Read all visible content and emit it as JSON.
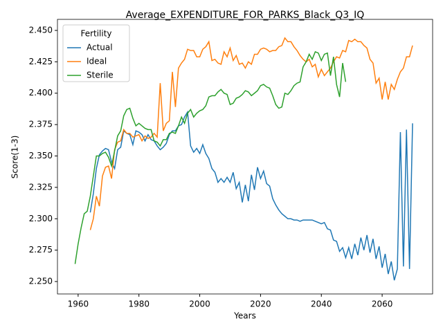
{
  "chart_data": {
    "type": "line",
    "title": "Average_EXPENDITURE_FOR_PARKS_Black_Q3_IQ",
    "x_label": "Years",
    "y_label": "Score(1-3)",
    "legend_title": "Fertility",
    "legend_position": "upper left",
    "x": [
      1959,
      1960,
      1961,
      1962,
      1963,
      1964,
      1965,
      1966,
      1967,
      1968,
      1969,
      1970,
      1971,
      1972,
      1973,
      1974,
      1975,
      1976,
      1977,
      1978,
      1979,
      1980,
      1981,
      1982,
      1983,
      1984,
      1985,
      1986,
      1987,
      1988,
      1989,
      1990,
      1991,
      1992,
      1993,
      1994,
      1995,
      1996,
      1997,
      1998,
      1999,
      2000,
      2001,
      2002,
      2003,
      2004,
      2005,
      2006,
      2007,
      2008,
      2009,
      2010,
      2011,
      2012,
      2013,
      2014,
      2015,
      2016,
      2017,
      2018,
      2019,
      2020,
      2021,
      2022,
      2023,
      2024,
      2025,
      2026,
      2027,
      2028,
      2029,
      2030,
      2031,
      2032,
      2033,
      2034,
      2035,
      2036,
      2037,
      2038,
      2039,
      2040,
      2041,
      2042,
      2043,
      2044,
      2045,
      2046,
      2047,
      2048,
      2049,
      2050,
      2051,
      2052,
      2053,
      2054,
      2055,
      2056,
      2057,
      2058,
      2059,
      2060,
      2061,
      2062,
      2063,
      2064,
      2065,
      2066,
      2067,
      2068,
      2069,
      2070
    ],
    "series": [
      {
        "name": "Actual",
        "color": "#1f77b4",
        "values": [
          null,
          null,
          null,
          null,
          null,
          2.305,
          2.32,
          2.34,
          2.351,
          2.354,
          2.356,
          2.355,
          2.345,
          2.34,
          2.355,
          2.357,
          2.37,
          2.368,
          2.367,
          2.359,
          2.37,
          2.369,
          2.367,
          2.362,
          2.367,
          2.363,
          2.362,
          2.358,
          2.355,
          2.357,
          2.36,
          2.367,
          2.37,
          2.37,
          2.374,
          2.375,
          2.381,
          2.385,
          2.358,
          2.353,
          2.356,
          2.352,
          2.359,
          2.352,
          2.348,
          2.34,
          2.337,
          2.329,
          2.332,
          2.329,
          2.333,
          2.329,
          2.337,
          2.324,
          2.329,
          2.313,
          2.327,
          2.314,
          2.335,
          2.323,
          2.341,
          2.332,
          2.338,
          2.328,
          2.326,
          2.316,
          2.311,
          2.307,
          2.304,
          2.302,
          2.3,
          2.3,
          2.299,
          2.299,
          2.298,
          2.299,
          2.299,
          2.299,
          2.299,
          2.298,
          2.297,
          2.296,
          2.297,
          2.292,
          2.291,
          2.283,
          2.282,
          2.274,
          2.277,
          2.269,
          2.277,
          2.268,
          2.28,
          2.271,
          2.285,
          2.275,
          2.287,
          2.273,
          2.284,
          2.268,
          2.278,
          2.261,
          2.272,
          2.256,
          2.266,
          2.251,
          2.26,
          2.369,
          2.262,
          2.371,
          2.26,
          2.376
        ]
      },
      {
        "name": "Ideal",
        "color": "#ff7f0e",
        "values": [
          null,
          null,
          null,
          null,
          null,
          2.291,
          2.3,
          2.318,
          2.31,
          2.334,
          2.341,
          2.342,
          2.332,
          2.355,
          2.361,
          2.362,
          2.371,
          2.368,
          2.368,
          2.365,
          2.366,
          2.367,
          2.362,
          2.366,
          2.364,
          2.365,
          2.368,
          2.365,
          2.408,
          2.37,
          2.376,
          2.378,
          2.417,
          2.389,
          2.42,
          2.424,
          2.427,
          2.435,
          2.434,
          2.434,
          2.429,
          2.429,
          2.435,
          2.437,
          2.441,
          2.426,
          2.427,
          2.424,
          2.423,
          2.433,
          2.429,
          2.436,
          2.426,
          2.43,
          2.423,
          2.424,
          2.42,
          2.425,
          2.423,
          2.431,
          2.431,
          2.435,
          2.436,
          2.435,
          2.433,
          2.434,
          2.434,
          2.437,
          2.438,
          2.444,
          2.441,
          2.441,
          2.437,
          2.434,
          2.43,
          2.427,
          2.425,
          2.427,
          2.421,
          2.423,
          2.413,
          2.419,
          2.414,
          2.417,
          2.42,
          2.425,
          2.429,
          2.428,
          2.434,
          2.433,
          2.442,
          2.441,
          2.443,
          2.441,
          2.441,
          2.438,
          2.436,
          2.427,
          2.424,
          2.408,
          2.412,
          2.395,
          2.409,
          2.395,
          2.407,
          2.403,
          2.411,
          2.417,
          2.42,
          2.429,
          2.429,
          2.438
        ]
      },
      {
        "name": "Sterile",
        "color": "#2ca02c",
        "values": [
          2.264,
          2.28,
          2.293,
          2.304,
          2.306,
          2.318,
          2.334,
          2.35,
          2.35,
          2.352,
          2.353,
          2.349,
          2.342,
          2.354,
          2.366,
          2.37,
          2.382,
          2.387,
          2.388,
          2.38,
          2.374,
          2.376,
          2.374,
          2.372,
          2.371,
          2.371,
          2.362,
          2.361,
          2.358,
          2.363,
          2.363,
          2.368,
          2.369,
          2.368,
          2.374,
          2.381,
          2.376,
          2.384,
          2.387,
          2.381,
          2.384,
          2.386,
          2.387,
          2.39,
          2.397,
          2.398,
          2.398,
          2.401,
          2.403,
          2.4,
          2.399,
          2.391,
          2.392,
          2.396,
          2.397,
          2.399,
          2.402,
          2.401,
          2.398,
          2.4,
          2.402,
          2.406,
          2.407,
          2.405,
          2.404,
          2.398,
          2.391,
          2.388,
          2.389,
          2.4,
          2.399,
          2.402,
          2.406,
          2.408,
          2.409,
          2.421,
          2.425,
          2.431,
          2.427,
          2.433,
          2.432,
          2.426,
          2.431,
          2.432,
          2.414,
          2.429,
          2.407,
          2.397,
          2.424,
          2.409,
          null,
          null,
          null,
          null,
          null,
          null,
          null,
          null,
          null,
          null,
          null,
          null,
          null,
          null,
          null,
          null,
          null,
          null,
          null,
          null,
          null,
          null
        ]
      }
    ],
    "xlim": [
      1953.2,
      2076.6
    ],
    "ylim": [
      2.2401,
      2.4588
    ],
    "xticks": [
      1960,
      1980,
      2000,
      2020,
      2040,
      2060
    ],
    "yticks": [
      {
        "value": 2.25,
        "label": "2.250"
      },
      2.275,
      {
        "value": 2.3,
        "label": "2.300"
      },
      2.325,
      {
        "value": 2.35,
        "label": "2.350"
      },
      2.375,
      {
        "value": 2.4,
        "label": "2.400"
      },
      2.425,
      {
        "value": 2.45,
        "label": "2.450"
      }
    ],
    "grid": false
  }
}
